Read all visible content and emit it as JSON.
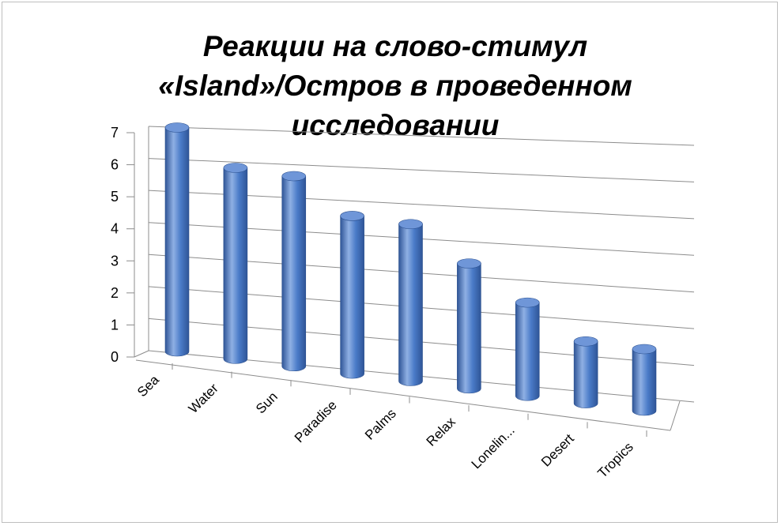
{
  "chart_data": {
    "type": "bar",
    "title_lines": [
      "Реакции на слово-стимул",
      "«Island»/Остров в проведенном",
      "исследовании"
    ],
    "categories": [
      "Sea",
      "Water",
      "Sun",
      "Paradise",
      "Palms",
      "Relax",
      "Lonelin...",
      "Desert",
      "Tropics"
    ],
    "values": [
      7,
      6,
      6,
      5,
      5,
      4,
      3,
      2,
      2
    ],
    "y_ticks": [
      "0",
      "1",
      "2",
      "3",
      "4",
      "5",
      "6",
      "7"
    ],
    "ylim": [
      0,
      7
    ],
    "grid": true,
    "legend": "none",
    "style": "3d-cylinder"
  },
  "colors": {
    "bar_dark": "#2f5597",
    "bar_mid": "#4a7bc8",
    "bar_light": "#8fb0e4",
    "bar_top": "#6f96d8",
    "grid": "#8c8c8c"
  }
}
